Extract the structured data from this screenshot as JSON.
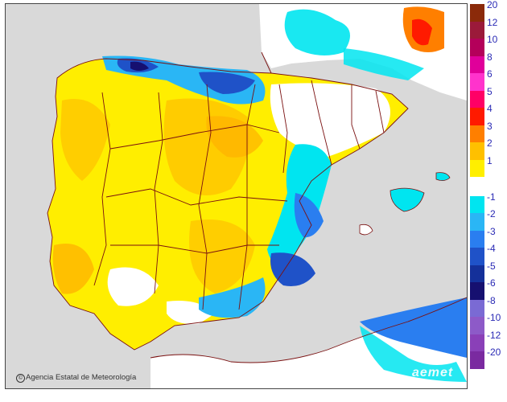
{
  "map": {
    "credit": "Agencia Estatal de Meteorología",
    "credit_symbol": "©",
    "brand": "aemet",
    "colors": {
      "sea": "#d9d9d9",
      "land_base": "#ffffff",
      "border": "#7a1010"
    }
  },
  "legend": {
    "positive": [
      {
        "label": "20",
        "color": "#8b2a0a"
      },
      {
        "label": "12",
        "color": "#9b1a3a"
      },
      {
        "label": "10",
        "color": "#b4005a"
      },
      {
        "label": "8",
        "color": "#e0009a"
      },
      {
        "label": "6",
        "color": "#ff33cc"
      },
      {
        "label": "5",
        "color": "#ff0066"
      },
      {
        "label": "4",
        "color": "#ff1a00"
      },
      {
        "label": "3",
        "color": "#ff7f00"
      },
      {
        "label": "2",
        "color": "#ffc000"
      },
      {
        "label": "1",
        "color": "#ffef00"
      }
    ],
    "neutral": {
      "label": "",
      "color": "#ffffff"
    },
    "negative": [
      {
        "label": "-1",
        "color": "#00e5f0"
      },
      {
        "label": "-2",
        "color": "#2ab6f5"
      },
      {
        "label": "-3",
        "color": "#2a7ef0"
      },
      {
        "label": "-4",
        "color": "#1f52c8"
      },
      {
        "label": "-5",
        "color": "#14309a"
      },
      {
        "label": "-6",
        "color": "#161070"
      },
      {
        "label": "-8",
        "color": "#7a6ad4"
      },
      {
        "label": "-10",
        "color": "#8d5ac8"
      },
      {
        "label": "-12",
        "color": "#8a40b8"
      },
      {
        "label": "-20",
        "color": "#7a2aa0"
      }
    ]
  }
}
